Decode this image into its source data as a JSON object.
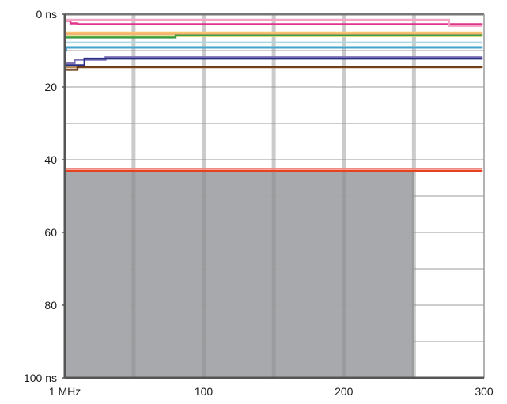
{
  "chart_data": {
    "type": "line",
    "title": "",
    "xlabel": "",
    "ylabel": "",
    "xlim": [
      1,
      300
    ],
    "ylim": [
      100,
      0
    ],
    "y_inverted": true,
    "x_tick_values": [
      1,
      100,
      200,
      300
    ],
    "x_tick_labels": [
      "1 MHz",
      "100",
      "200",
      "300"
    ],
    "y_tick_values": [
      0,
      20,
      40,
      60,
      80,
      100
    ],
    "y_tick_labels": [
      "0 ns",
      "20",
      "40",
      "60",
      "80",
      "100 ns"
    ],
    "x_gridlines": [
      50,
      100,
      150,
      200,
      250
    ],
    "y_gridlines": [
      10,
      20,
      30,
      40,
      50,
      60,
      70,
      80,
      90
    ],
    "grid": true,
    "legend": "none",
    "shaded_region": {
      "x": [
        1,
        250
      ],
      "y": [
        43,
        100
      ],
      "color": "#a8a9ad"
    },
    "series": [
      {
        "color": "#e0338a",
        "points": [
          [
            1,
            1.8
          ],
          [
            5,
            2.5
          ],
          [
            10,
            2.7
          ],
          [
            40,
            2.7
          ],
          [
            299,
            2.7
          ]
        ]
      },
      {
        "color": "#f4a3c2",
        "points": [
          [
            1,
            1.5
          ],
          [
            60,
            1.5
          ],
          [
            260,
            1.5
          ],
          [
            275,
            3.2
          ],
          [
            299,
            3.2
          ]
        ]
      },
      {
        "color": "#f1d25f",
        "points": [
          [
            1,
            5.0
          ],
          [
            299,
            5.0
          ]
        ]
      },
      {
        "color": "#f7b07a",
        "points": [
          [
            1,
            5.4
          ],
          [
            299,
            5.4
          ]
        ]
      },
      {
        "color": "#c6da5a",
        "points": [
          [
            1,
            6.0
          ],
          [
            299,
            6.0
          ]
        ]
      },
      {
        "color": "#3e9b45",
        "points": [
          [
            1,
            6.4
          ],
          [
            70,
            6.4
          ],
          [
            80,
            5.8
          ],
          [
            299,
            5.8
          ]
        ]
      },
      {
        "color": "#a9d7e4",
        "points": [
          [
            1,
            7.8
          ],
          [
            299,
            7.8
          ]
        ]
      },
      {
        "color": "#6cc3c8",
        "points": [
          [
            1,
            9.0
          ],
          [
            299,
            9.0
          ]
        ]
      },
      {
        "color": "#4aa1d6",
        "points": [
          [
            1,
            10.0
          ],
          [
            2,
            9.2
          ],
          [
            299,
            9.2
          ]
        ]
      },
      {
        "color": "#7f72b5",
        "points": [
          [
            1,
            13.5
          ],
          [
            8,
            12.5
          ],
          [
            30,
            11.8
          ],
          [
            299,
            11.8
          ]
        ]
      },
      {
        "color": "#2a2f86",
        "points": [
          [
            1,
            14.0
          ],
          [
            15,
            12.2
          ],
          [
            299,
            12.2
          ]
        ]
      },
      {
        "color": "#b08a5c",
        "points": [
          [
            1,
            14.6
          ],
          [
            299,
            14.6
          ]
        ]
      },
      {
        "color": "#6b3b15",
        "points": [
          [
            1,
            15.3
          ],
          [
            10,
            14.5
          ],
          [
            299,
            14.5
          ]
        ]
      },
      {
        "color": "#f08a82",
        "points": [
          [
            1,
            42.5
          ],
          [
            299,
            42.5
          ]
        ]
      },
      {
        "color": "#e8411d",
        "points": [
          [
            1,
            43.1
          ],
          [
            299,
            43.1
          ]
        ]
      }
    ]
  }
}
